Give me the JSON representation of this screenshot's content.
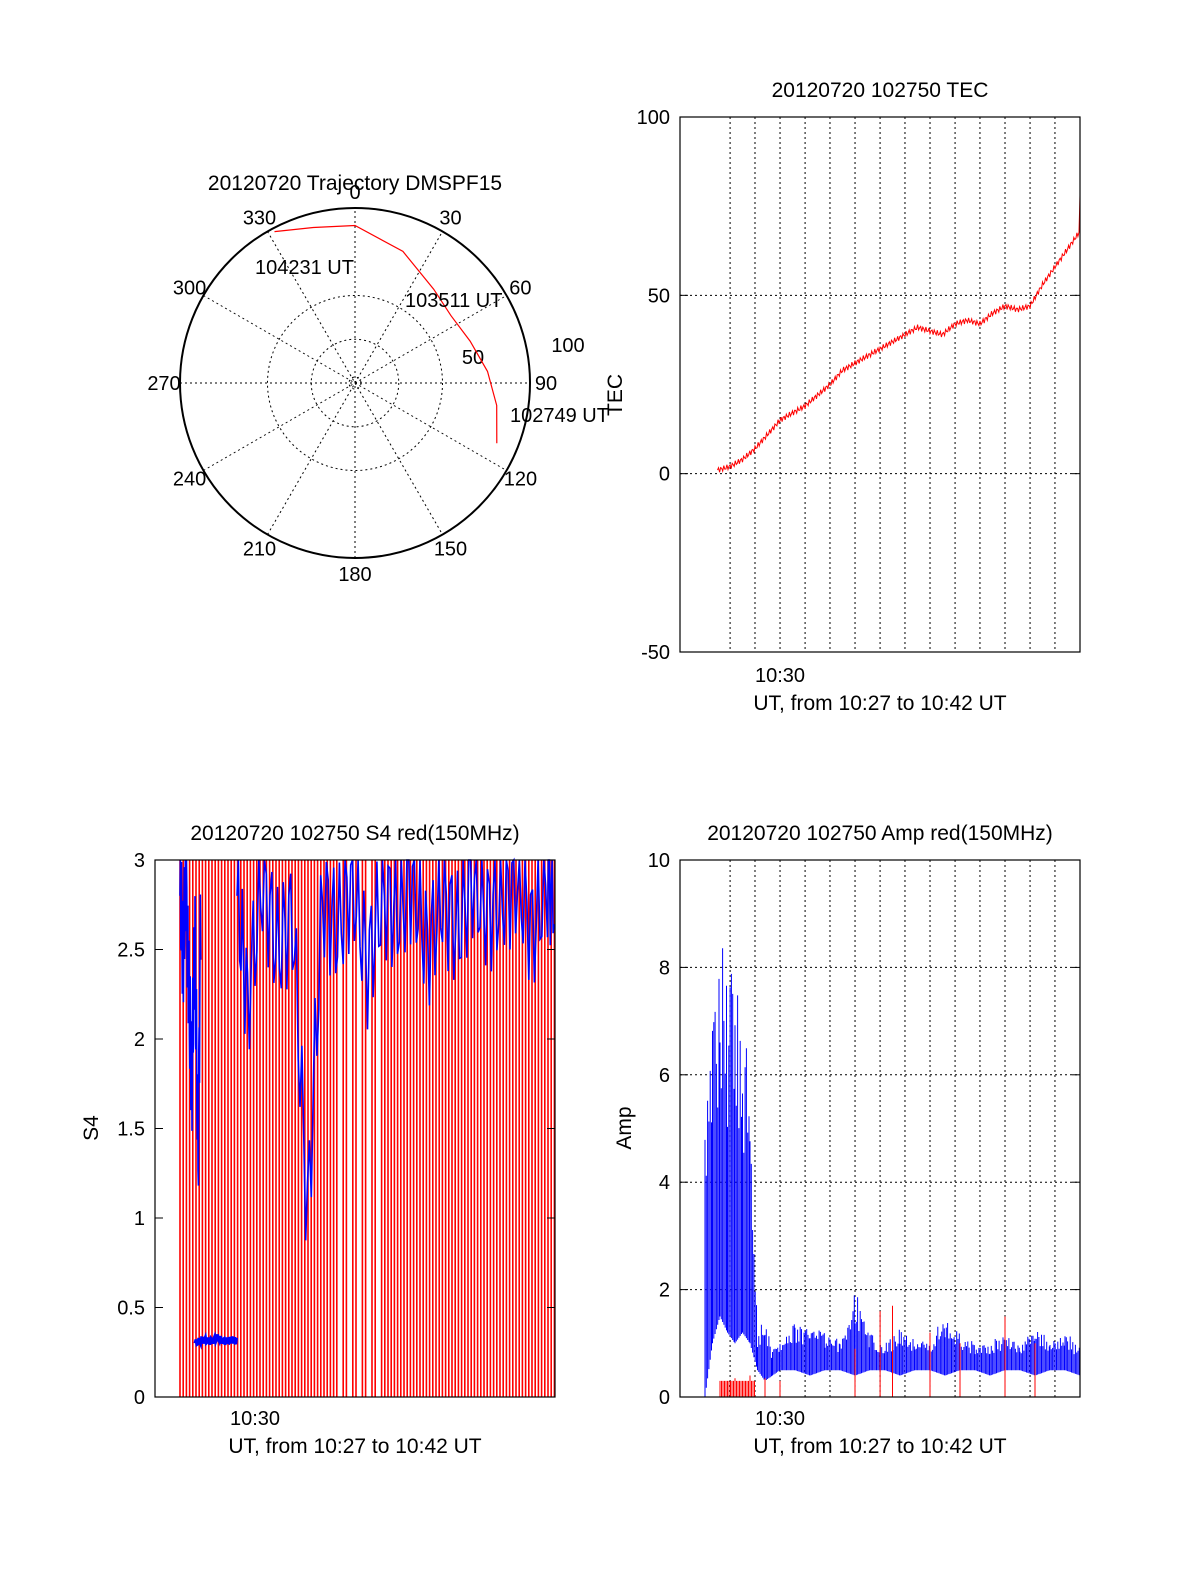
{
  "chart_data": [
    {
      "id": "polar",
      "type": "polar-trajectory",
      "title": "20120720 Trajectory DMSPF15",
      "azimuth_labels": [
        "0",
        "30",
        "60",
        "90",
        "120",
        "150",
        "180",
        "210",
        "240",
        "270",
        "300",
        "330"
      ],
      "radial_labels": [
        "50",
        "100"
      ],
      "r_max": 100,
      "trajectory": {
        "color": "#ff0000",
        "points": [
          {
            "az": 113,
            "r": 88
          },
          {
            "az": 99,
            "r": 82
          },
          {
            "az": 85,
            "r": 76
          },
          {
            "az": 70,
            "r": 70
          },
          {
            "az": 55,
            "r": 67
          },
          {
            "az": 40,
            "r": 70
          },
          {
            "az": 20,
            "r": 80
          },
          {
            "az": 0,
            "r": 90
          },
          {
            "az": -15,
            "r": 92
          },
          {
            "az": -28,
            "r": 98
          }
        ]
      },
      "annotations": [
        {
          "text": "104231 UT",
          "az": -28,
          "r": 98
        },
        {
          "text": "103511 UT",
          "az": 55,
          "r": 67
        },
        {
          "text": "102749 UT",
          "az": 113,
          "r": 88
        }
      ]
    },
    {
      "id": "tec",
      "type": "line",
      "title": "20120720 102750 TEC",
      "xlabel": "UT, from 10:27 to 10:42 UT",
      "ylabel": "TEC",
      "xlim": [
        10.4333,
        10.7
      ],
      "ylim": [
        -50,
        100
      ],
      "yticks": [
        "100",
        "50",
        "0",
        "-50"
      ],
      "xtick_label": "10:30",
      "xtick_label_value": 10.5,
      "grid_x": [
        10.4667,
        10.4833,
        10.5,
        10.5167,
        10.5333,
        10.55,
        10.5667,
        10.5833,
        10.6,
        10.6167,
        10.6333,
        10.65,
        10.6667,
        10.6833
      ],
      "series": [
        {
          "color": "#ff0000",
          "x": [
            10.4583,
            10.4667,
            10.475,
            10.4833,
            10.4917,
            10.5,
            10.5083,
            10.5167,
            10.525,
            10.5333,
            10.5417,
            10.55,
            10.5583,
            10.5667,
            10.575,
            10.5833,
            10.5917,
            10.6,
            10.6083,
            10.6167,
            10.625,
            10.6333,
            10.6417,
            10.65,
            10.6583,
            10.6667,
            10.675,
            10.6833,
            10.6917,
            10.7
          ],
          "values": [
            1,
            2,
            4,
            7,
            11,
            15,
            17,
            19,
            22,
            25,
            29,
            31,
            33,
            35,
            37,
            39,
            41,
            40,
            39,
            42,
            43,
            42,
            45,
            47,
            46,
            47,
            53,
            58,
            63,
            68
          ]
        }
      ]
    },
    {
      "id": "s4",
      "type": "line",
      "title": "20120720 102750 S4 red(150MHz)",
      "xlabel": "UT, from 10:27 to 10:42 UT",
      "ylabel": "S4",
      "xlim": [
        10.4333,
        10.7
      ],
      "ylim": [
        0,
        3
      ],
      "yticks": [
        "3",
        "2.5",
        "2",
        "1.5",
        "1",
        "0.5",
        "0"
      ],
      "xtick_label": "10:30",
      "xtick_label_value": 10.5,
      "series": [
        {
          "name": "red",
          "color": "#ff0000",
          "x_start": 10.45,
          "x_end": 10.7,
          "min": 0,
          "max": 3
        },
        {
          "name": "blue",
          "color": "#0000ff",
          "segments": [
            {
              "x": [
                10.45,
                10.452,
                10.454,
                10.456,
                10.458,
                10.46,
                10.462,
                10.464
              ],
              "values": [
                2.8,
                2.5,
                2.9,
                2.2,
                1.8,
                2.6,
                1.3,
                2.9
              ]
            },
            {
              "x": [
                10.46,
                10.465,
                10.47,
                10.475,
                10.48,
                10.485,
                10.488
              ],
              "values": [
                0.3,
                0.32,
                0.31,
                0.33,
                0.31,
                0.32,
                0.31
              ]
            },
            {
              "x": [
                10.488,
                10.495,
                10.505,
                10.515,
                10.525,
                10.535,
                10.545,
                10.555,
                10.565,
                10.575,
                10.585,
                10.595,
                10.605,
                10.615,
                10.625,
                10.635,
                10.645,
                10.655,
                10.665,
                10.675,
                10.685,
                10.695,
                10.7
              ],
              "values": [
                2.8,
                2.2,
                2.9,
                2.5,
                2.7,
                1.0,
                2.8,
                2.6,
                2.9,
                2.4,
                2.8,
                2.7,
                2.9,
                2.5,
                2.8,
                2.6,
                2.9,
                2.7,
                2.8,
                2.9,
                2.6,
                2.9,
                2.8
              ]
            }
          ]
        }
      ]
    },
    {
      "id": "amp",
      "type": "line",
      "title": "20120720 102750 Amp red(150MHz)",
      "xlabel": "UT, from 10:27 to 10:42 UT",
      "ylabel": "Amp",
      "xlim": [
        10.4333,
        10.7
      ],
      "ylim": [
        0,
        10
      ],
      "yticks": [
        "10",
        "8",
        "6",
        "4",
        "2",
        "0"
      ],
      "xtick_label": "10:30",
      "xtick_label_value": 10.5,
      "grid_x": [
        10.4667,
        10.4833,
        10.5,
        10.5167,
        10.5333,
        10.55,
        10.5667,
        10.5833,
        10.6,
        10.6167,
        10.6333,
        10.65,
        10.6667,
        10.6833
      ],
      "series": [
        {
          "name": "red",
          "color": "#ff0000",
          "x": [
            10.46,
            10.47,
            10.48,
            10.49,
            10.5,
            10.55,
            10.5667,
            10.575,
            10.6,
            10.62,
            10.65,
            10.67
          ],
          "values": [
            0.3,
            0.35,
            0.4,
            0.35,
            0.3,
            0.9,
            1.6,
            1.7,
            1.2,
            1.0,
            1.5,
            1.0
          ]
        },
        {
          "name": "blue",
          "color": "#0000ff",
          "x": [
            10.45,
            10.455,
            10.46,
            10.465,
            10.47,
            10.475,
            10.48,
            10.485,
            10.49,
            10.495,
            10.5,
            10.51,
            10.52,
            10.53,
            10.54,
            10.55,
            10.56,
            10.57,
            10.58,
            10.59,
            10.6,
            10.61,
            10.62,
            10.63,
            10.64,
            10.65,
            10.66,
            10.67,
            10.68,
            10.69,
            10.7
          ],
          "values": [
            5.7,
            7.5,
            8.7,
            7.9,
            8.6,
            7.3,
            6.2,
            1.2,
            1.5,
            0.9,
            1.0,
            1.4,
            1.3,
            1.2,
            1.1,
            2.1,
            1.2,
            1.0,
            1.3,
            1.1,
            1.0,
            1.6,
            1.2,
            1.0,
            1.1,
            1.2,
            1.0,
            1.3,
            1.1,
            1.2,
            1.0
          ],
          "lows": [
            0,
            1.0,
            1.5,
            1.2,
            1.0,
            1.2,
            1.0,
            0.5,
            0.3,
            0.4,
            0.5,
            0.5,
            0.4,
            0.5,
            0.5,
            0.4,
            0.5,
            0.5,
            0.4,
            0.5,
            0.5,
            0.4,
            0.5,
            0.5,
            0.4,
            0.5,
            0.5,
            0.4,
            0.5,
            0.5,
            0.4
          ]
        }
      ]
    }
  ]
}
